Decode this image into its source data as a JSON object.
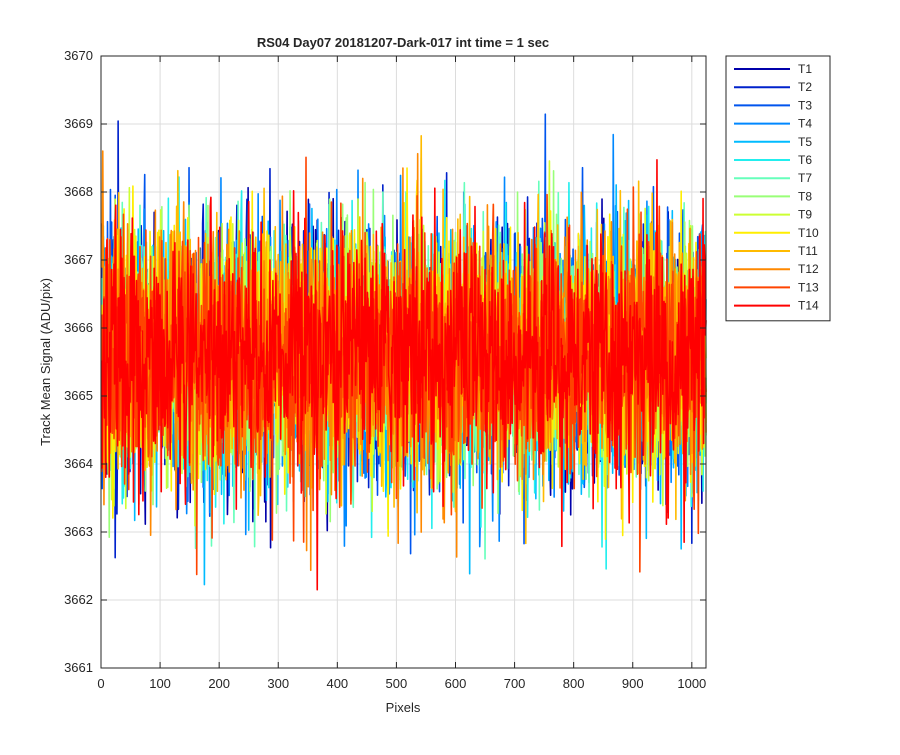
{
  "chart_data": {
    "type": "line",
    "title": "RS04 Day07 20181207-Dark-017 int time = 1 sec",
    "xlabel": "Pixels",
    "ylabel": "Track Mean Signal (ADU/pix)",
    "xlim": [
      0,
      1024
    ],
    "ylim": [
      3661,
      3670
    ],
    "xticks": [
      0,
      100,
      200,
      300,
      400,
      500,
      600,
      700,
      800,
      900,
      1000
    ],
    "yticks": [
      3661,
      3662,
      3663,
      3664,
      3665,
      3666,
      3667,
      3668,
      3669,
      3670
    ],
    "grid": true,
    "legend_position": "outside-right",
    "x_range": [
      1,
      1024
    ],
    "series": [
      {
        "name": "T1",
        "color": "#0000AA",
        "mean": 3665.6,
        "spread": 0.9
      },
      {
        "name": "T2",
        "color": "#0022CC",
        "mean": 3665.6,
        "spread": 0.9
      },
      {
        "name": "T3",
        "color": "#0055EE",
        "mean": 3665.6,
        "spread": 0.9
      },
      {
        "name": "T4",
        "color": "#0088FF",
        "mean": 3665.6,
        "spread": 0.9
      },
      {
        "name": "T5",
        "color": "#00BBFF",
        "mean": 3665.6,
        "spread": 0.9
      },
      {
        "name": "T6",
        "color": "#22EEEE",
        "mean": 3665.6,
        "spread": 0.9
      },
      {
        "name": "T7",
        "color": "#66FFBB",
        "mean": 3665.6,
        "spread": 0.9
      },
      {
        "name": "T8",
        "color": "#99FF77",
        "mean": 3665.6,
        "spread": 0.9
      },
      {
        "name": "T9",
        "color": "#CCFF33",
        "mean": 3665.6,
        "spread": 0.9
      },
      {
        "name": "T10",
        "color": "#FFEE00",
        "mean": 3665.6,
        "spread": 0.9
      },
      {
        "name": "T11",
        "color": "#FFBB00",
        "mean": 3665.6,
        "spread": 0.9
      },
      {
        "name": "T12",
        "color": "#FF8800",
        "mean": 3665.6,
        "spread": 0.9
      },
      {
        "name": "T13",
        "color": "#FF4400",
        "mean": 3665.6,
        "spread": 0.9
      },
      {
        "name": "T14",
        "color": "#FF0000",
        "mean": 3665.6,
        "spread": 0.9
      }
    ]
  }
}
